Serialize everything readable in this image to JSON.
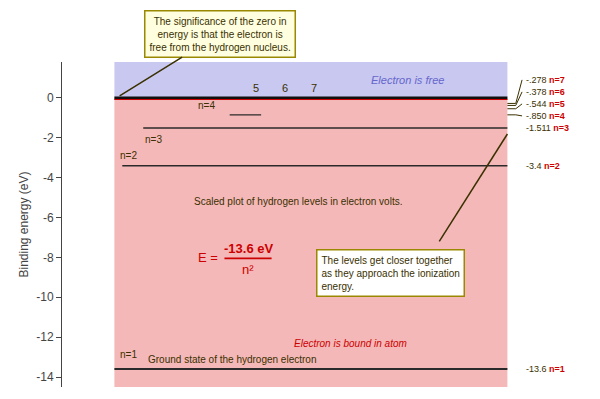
{
  "chart_data": {
    "type": "levels",
    "ylabel": "Binding energy (eV)",
    "categories": [
      "n=1",
      "n=2",
      "n=3",
      "n=4",
      "n=5",
      "n=6",
      "n=7"
    ],
    "values": [
      -13.6,
      -3.4,
      -1.511,
      -0.85,
      -0.544,
      -0.378,
      -0.278
    ],
    "value_labels": [
      "-13.6",
      "-3.4",
      "-1.511",
      "-.850",
      "-.544",
      "-.378",
      "-.278"
    ],
    "data_labels": true,
    "color": "#2a2a2a",
    "ylim": [
      -14.5,
      1.8
    ],
    "yticks": [
      -14,
      -12,
      -10,
      -8,
      -6,
      -4,
      -2,
      0
    ],
    "grid": false,
    "tick_labels": "y",
    "annotations": [
      "Electron is free",
      "Electron is bound in atom",
      "Scaled plot of hydrogen levels in electron volts.",
      "Ground state of the hydrogen electron",
      "The significance of the zero in\nenergy is that the electron is\nfree from the hydrogen nucleus.",
      "The levels get closer together\nas they approach the ionization\nenergy.",
      "E =",
      "-13.6 eV",
      "n²",
      "5",
      "6",
      "7"
    ]
  }
}
